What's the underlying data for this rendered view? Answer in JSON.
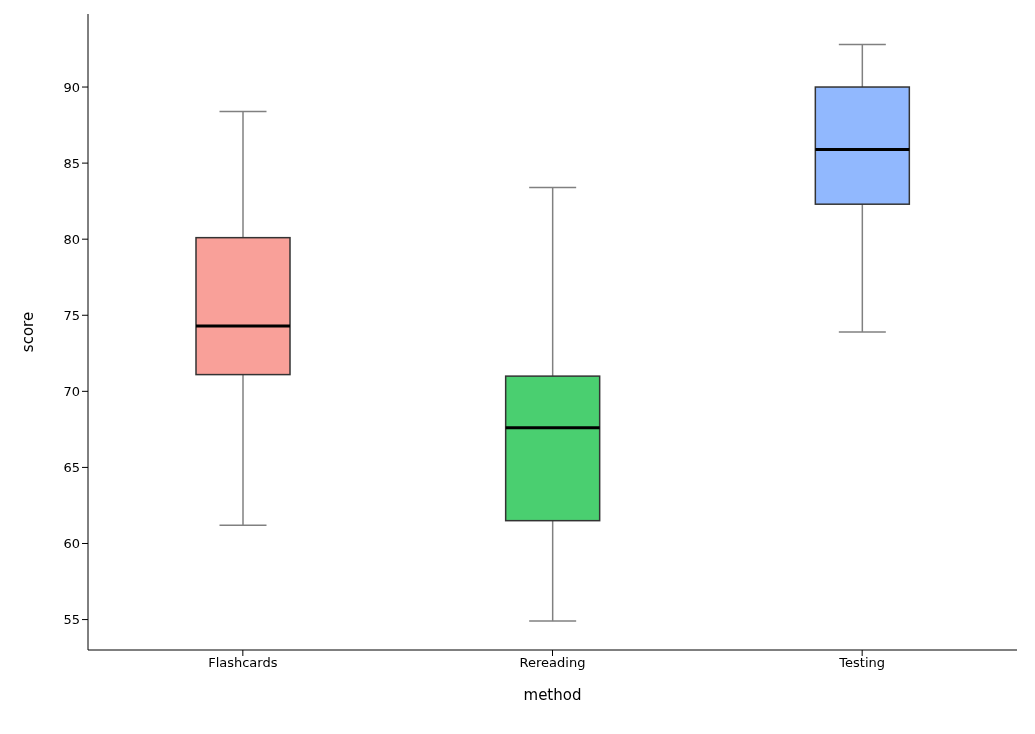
{
  "chart_data": {
    "type": "box",
    "xlabel": "method",
    "ylabel": "score",
    "categories": [
      "Flashcards",
      "Rereading",
      "Testing"
    ],
    "colors": [
      "#f9a099",
      "#4acf70",
      "#91b8fe"
    ],
    "boxes": [
      {
        "low": 61.2,
        "q1": 71.1,
        "median": 74.3,
        "q3": 80.1,
        "high": 88.4
      },
      {
        "low": 54.9,
        "q1": 61.5,
        "median": 67.6,
        "q3": 71.0,
        "high": 83.4
      },
      {
        "low": 73.9,
        "q1": 82.3,
        "median": 85.9,
        "q3": 90.0,
        "high": 92.8
      }
    ],
    "ylim": [
      53,
      94.8
    ],
    "yticks": [
      55,
      60,
      65,
      70,
      75,
      80,
      85,
      90
    ]
  }
}
